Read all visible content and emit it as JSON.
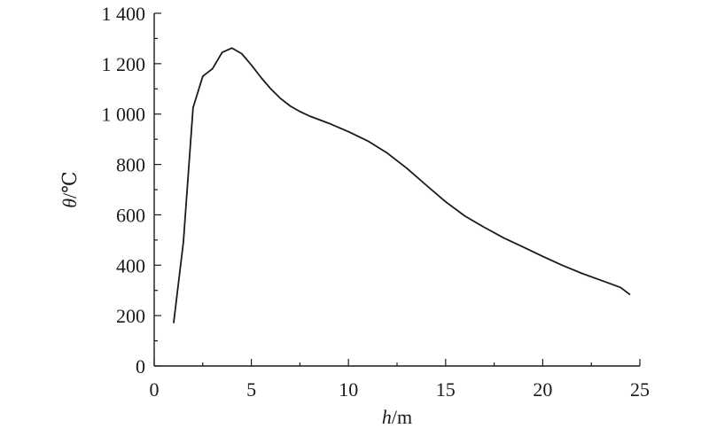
{
  "chart_data": {
    "type": "line",
    "title": "",
    "xlabel": "h/m",
    "ylabel": "θ/℃",
    "xlabel_parts": {
      "var": "h",
      "unit": "/m"
    },
    "ylabel_parts": {
      "var": "θ",
      "unit": "/℃"
    },
    "xlim": [
      0,
      25
    ],
    "ylim": [
      0,
      1400
    ],
    "x_ticks": [
      0,
      5,
      10,
      15,
      20,
      25
    ],
    "x_tick_labels": [
      "0",
      "5",
      "10",
      "15",
      "20",
      "25"
    ],
    "y_ticks": [
      0,
      200,
      400,
      600,
      800,
      1000,
      1200,
      1400
    ],
    "y_tick_labels": [
      "0",
      "200",
      "400",
      "600",
      "800",
      "1 000",
      "1 200",
      "1 400"
    ],
    "grid": false,
    "legend": "none",
    "line_color": "#1a1a1a",
    "series": [
      {
        "x": [
          1.0,
          1.5,
          2.0,
          2.5,
          3.0,
          3.5,
          4.0,
          4.5,
          5.0,
          5.5,
          6.0,
          6.5,
          7.0,
          7.5,
          8.0,
          9.0,
          10.0,
          11.0,
          12.0,
          13.0,
          14.0,
          15.0,
          16.0,
          17.0,
          18.0,
          19.0,
          20.0,
          21.0,
          22.0,
          23.0,
          24.0,
          24.5
        ],
        "y": [
          170,
          490,
          1025,
          1150,
          1180,
          1245,
          1262,
          1240,
          1195,
          1145,
          1100,
          1062,
          1032,
          1010,
          992,
          963,
          930,
          893,
          845,
          785,
          718,
          652,
          595,
          550,
          508,
          472,
          435,
          400,
          368,
          340,
          312,
          283
        ]
      }
    ]
  }
}
